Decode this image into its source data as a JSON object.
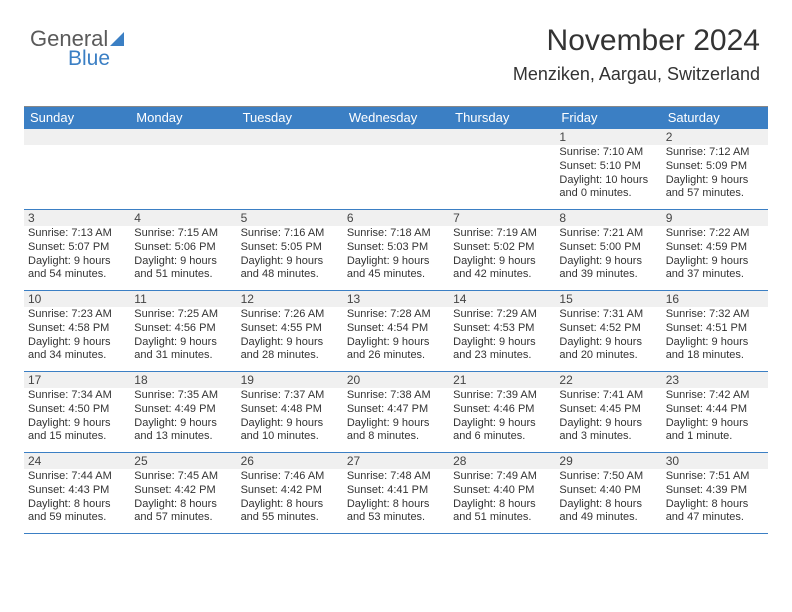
{
  "logo": {
    "line1": "General",
    "line2": "Blue"
  },
  "header": {
    "month": "November 2024",
    "location": "Menziken, Aargau, Switzerland"
  },
  "colors": {
    "accent": "#3b7fc4",
    "header_bg": "#3b7fc4",
    "daynum_bg": "#f0f0f0",
    "text": "#333333",
    "border": "#3b7fc4"
  },
  "typography": {
    "month_fontsize": 30,
    "location_fontsize": 18,
    "dayhead_fontsize": 13,
    "cell_fontsize": 11
  },
  "day_names": [
    "Sunday",
    "Monday",
    "Tuesday",
    "Wednesday",
    "Thursday",
    "Friday",
    "Saturday"
  ],
  "weeks": [
    [
      {
        "n": "",
        "sunrise": "",
        "sunset": "",
        "daylight": ""
      },
      {
        "n": "",
        "sunrise": "",
        "sunset": "",
        "daylight": ""
      },
      {
        "n": "",
        "sunrise": "",
        "sunset": "",
        "daylight": ""
      },
      {
        "n": "",
        "sunrise": "",
        "sunset": "",
        "daylight": ""
      },
      {
        "n": "",
        "sunrise": "",
        "sunset": "",
        "daylight": ""
      },
      {
        "n": "1",
        "sunrise": "Sunrise: 7:10 AM",
        "sunset": "Sunset: 5:10 PM",
        "daylight": "Daylight: 10 hours and 0 minutes."
      },
      {
        "n": "2",
        "sunrise": "Sunrise: 7:12 AM",
        "sunset": "Sunset: 5:09 PM",
        "daylight": "Daylight: 9 hours and 57 minutes."
      }
    ],
    [
      {
        "n": "3",
        "sunrise": "Sunrise: 7:13 AM",
        "sunset": "Sunset: 5:07 PM",
        "daylight": "Daylight: 9 hours and 54 minutes."
      },
      {
        "n": "4",
        "sunrise": "Sunrise: 7:15 AM",
        "sunset": "Sunset: 5:06 PM",
        "daylight": "Daylight: 9 hours and 51 minutes."
      },
      {
        "n": "5",
        "sunrise": "Sunrise: 7:16 AM",
        "sunset": "Sunset: 5:05 PM",
        "daylight": "Daylight: 9 hours and 48 minutes."
      },
      {
        "n": "6",
        "sunrise": "Sunrise: 7:18 AM",
        "sunset": "Sunset: 5:03 PM",
        "daylight": "Daylight: 9 hours and 45 minutes."
      },
      {
        "n": "7",
        "sunrise": "Sunrise: 7:19 AM",
        "sunset": "Sunset: 5:02 PM",
        "daylight": "Daylight: 9 hours and 42 minutes."
      },
      {
        "n": "8",
        "sunrise": "Sunrise: 7:21 AM",
        "sunset": "Sunset: 5:00 PM",
        "daylight": "Daylight: 9 hours and 39 minutes."
      },
      {
        "n": "9",
        "sunrise": "Sunrise: 7:22 AM",
        "sunset": "Sunset: 4:59 PM",
        "daylight": "Daylight: 9 hours and 37 minutes."
      }
    ],
    [
      {
        "n": "10",
        "sunrise": "Sunrise: 7:23 AM",
        "sunset": "Sunset: 4:58 PM",
        "daylight": "Daylight: 9 hours and 34 minutes."
      },
      {
        "n": "11",
        "sunrise": "Sunrise: 7:25 AM",
        "sunset": "Sunset: 4:56 PM",
        "daylight": "Daylight: 9 hours and 31 minutes."
      },
      {
        "n": "12",
        "sunrise": "Sunrise: 7:26 AM",
        "sunset": "Sunset: 4:55 PM",
        "daylight": "Daylight: 9 hours and 28 minutes."
      },
      {
        "n": "13",
        "sunrise": "Sunrise: 7:28 AM",
        "sunset": "Sunset: 4:54 PM",
        "daylight": "Daylight: 9 hours and 26 minutes."
      },
      {
        "n": "14",
        "sunrise": "Sunrise: 7:29 AM",
        "sunset": "Sunset: 4:53 PM",
        "daylight": "Daylight: 9 hours and 23 minutes."
      },
      {
        "n": "15",
        "sunrise": "Sunrise: 7:31 AM",
        "sunset": "Sunset: 4:52 PM",
        "daylight": "Daylight: 9 hours and 20 minutes."
      },
      {
        "n": "16",
        "sunrise": "Sunrise: 7:32 AM",
        "sunset": "Sunset: 4:51 PM",
        "daylight": "Daylight: 9 hours and 18 minutes."
      }
    ],
    [
      {
        "n": "17",
        "sunrise": "Sunrise: 7:34 AM",
        "sunset": "Sunset: 4:50 PM",
        "daylight": "Daylight: 9 hours and 15 minutes."
      },
      {
        "n": "18",
        "sunrise": "Sunrise: 7:35 AM",
        "sunset": "Sunset: 4:49 PM",
        "daylight": "Daylight: 9 hours and 13 minutes."
      },
      {
        "n": "19",
        "sunrise": "Sunrise: 7:37 AM",
        "sunset": "Sunset: 4:48 PM",
        "daylight": "Daylight: 9 hours and 10 minutes."
      },
      {
        "n": "20",
        "sunrise": "Sunrise: 7:38 AM",
        "sunset": "Sunset: 4:47 PM",
        "daylight": "Daylight: 9 hours and 8 minutes."
      },
      {
        "n": "21",
        "sunrise": "Sunrise: 7:39 AM",
        "sunset": "Sunset: 4:46 PM",
        "daylight": "Daylight: 9 hours and 6 minutes."
      },
      {
        "n": "22",
        "sunrise": "Sunrise: 7:41 AM",
        "sunset": "Sunset: 4:45 PM",
        "daylight": "Daylight: 9 hours and 3 minutes."
      },
      {
        "n": "23",
        "sunrise": "Sunrise: 7:42 AM",
        "sunset": "Sunset: 4:44 PM",
        "daylight": "Daylight: 9 hours and 1 minute."
      }
    ],
    [
      {
        "n": "24",
        "sunrise": "Sunrise: 7:44 AM",
        "sunset": "Sunset: 4:43 PM",
        "daylight": "Daylight: 8 hours and 59 minutes."
      },
      {
        "n": "25",
        "sunrise": "Sunrise: 7:45 AM",
        "sunset": "Sunset: 4:42 PM",
        "daylight": "Daylight: 8 hours and 57 minutes."
      },
      {
        "n": "26",
        "sunrise": "Sunrise: 7:46 AM",
        "sunset": "Sunset: 4:42 PM",
        "daylight": "Daylight: 8 hours and 55 minutes."
      },
      {
        "n": "27",
        "sunrise": "Sunrise: 7:48 AM",
        "sunset": "Sunset: 4:41 PM",
        "daylight": "Daylight: 8 hours and 53 minutes."
      },
      {
        "n": "28",
        "sunrise": "Sunrise: 7:49 AM",
        "sunset": "Sunset: 4:40 PM",
        "daylight": "Daylight: 8 hours and 51 minutes."
      },
      {
        "n": "29",
        "sunrise": "Sunrise: 7:50 AM",
        "sunset": "Sunset: 4:40 PM",
        "daylight": "Daylight: 8 hours and 49 minutes."
      },
      {
        "n": "30",
        "sunrise": "Sunrise: 7:51 AM",
        "sunset": "Sunset: 4:39 PM",
        "daylight": "Daylight: 8 hours and 47 minutes."
      }
    ]
  ]
}
